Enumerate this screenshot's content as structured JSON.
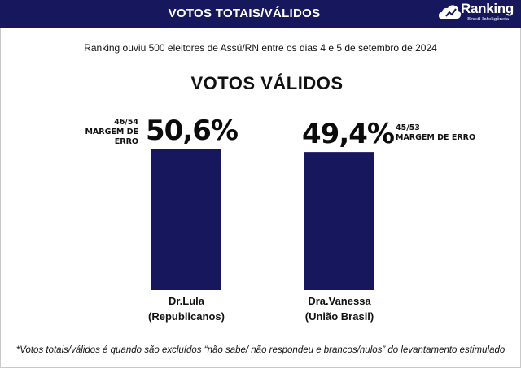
{
  "header": {
    "title": "VOTOS TOTAIS/VÁLIDOS",
    "logo_word": "Ranking",
    "logo_sub": "Brasil Inteligência"
  },
  "subtitle": "Ranking ouviu 500 eleitores de Assú/RN entre os dias 4 e 5 de setembro de 2024",
  "footnote": "*Votos totais/válidos é quando são excluídos “não sabe/ não respondeu e brancos/nulos” do levantamento estimulado",
  "colors": {
    "header": "#16175c",
    "bar": "#16175c"
  },
  "chart_data": {
    "type": "bar",
    "title": "VOTOS VÁLIDOS",
    "categories": [
      "Dr.Lula (Republicanos)",
      "Dra.Vanessa (União Brasil)"
    ],
    "category_lines": [
      [
        "Dr.Lula",
        "(Republicanos)"
      ],
      [
        "Dra.Vanessa",
        "(União Brasil)"
      ]
    ],
    "values": [
      50.6,
      49.4
    ],
    "value_labels": [
      "50,6%",
      "49,4%"
    ],
    "margins": [
      {
        "range": "46/54",
        "label": "MARGEM DE ERRO"
      },
      {
        "range": "45/53",
        "label": "MARGEM DE ERRO"
      }
    ],
    "xlabel": "",
    "ylabel": "",
    "grid": false
  }
}
